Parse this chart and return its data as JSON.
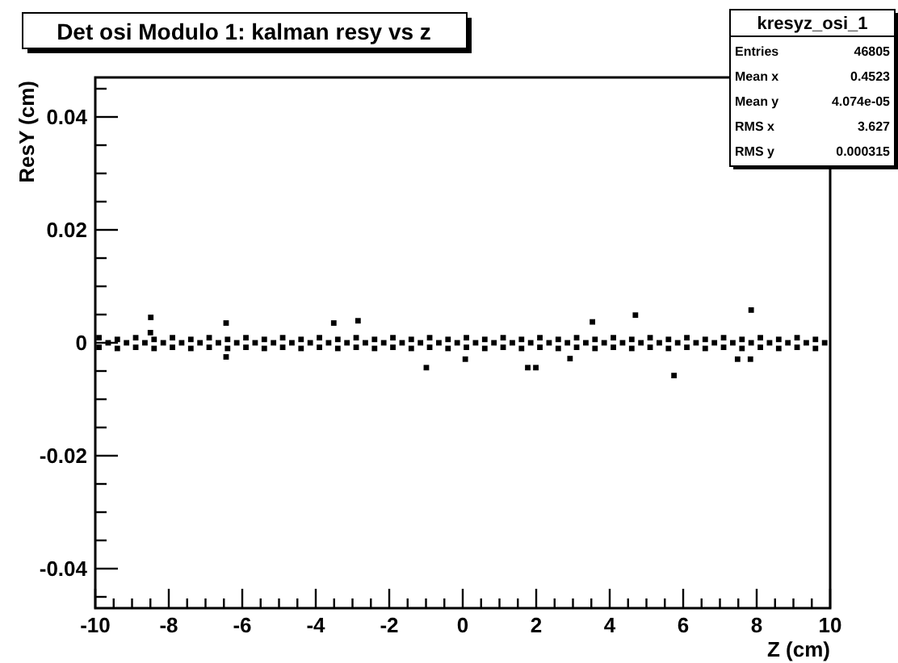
{
  "chart_data": {
    "type": "scatter",
    "title": "Det osi Modulo 1: kalman resy vs z",
    "xlabel": "Z (cm)",
    "ylabel": "ResY (cm)",
    "xlim": [
      -10,
      10
    ],
    "ylim": [
      -0.047,
      0.047
    ],
    "xticks": [
      -10,
      {
        "value": -9.5,
        "label": null
      },
      {
        "value": -9,
        "label": null
      },
      {
        "value": -8.5,
        "label": null
      },
      -8,
      {
        "value": -7.5,
        "label": null
      },
      {
        "value": -7,
        "label": null
      },
      {
        "value": -6.5,
        "label": null
      },
      -6,
      {
        "value": -5.5,
        "label": null
      },
      {
        "value": -5,
        "label": null
      },
      {
        "value": -4.5,
        "label": null
      },
      -4,
      {
        "value": -3.5,
        "label": null
      },
      {
        "value": -3,
        "label": null
      },
      {
        "value": -2.5,
        "label": null
      },
      -2,
      {
        "value": -1.5,
        "label": null
      },
      {
        "value": -1,
        "label": null
      },
      {
        "value": -0.5,
        "label": null
      },
      0,
      {
        "value": 0.5,
        "label": null
      },
      {
        "value": 1,
        "label": null
      },
      {
        "value": 1.5,
        "label": null
      },
      2,
      {
        "value": 2.5,
        "label": null
      },
      {
        "value": 3,
        "label": null
      },
      {
        "value": 3.5,
        "label": null
      },
      4,
      {
        "value": 4.5,
        "label": null
      },
      {
        "value": 5,
        "label": null
      },
      {
        "value": 5.5,
        "label": null
      },
      6,
      {
        "value": 6.5,
        "label": null
      },
      {
        "value": 7,
        "label": null
      },
      {
        "value": 7.5,
        "label": null
      },
      8,
      {
        "value": 8.5,
        "label": null
      },
      {
        "value": 9,
        "label": null
      },
      {
        "value": 9.5,
        "label": null
      },
      10
    ],
    "yticks": [
      {
        "value": -0.045,
        "label": null
      },
      -0.04,
      {
        "value": -0.035,
        "label": null
      },
      {
        "value": -0.03,
        "label": null
      },
      {
        "value": -0.025,
        "label": null
      },
      -0.02,
      {
        "value": -0.015,
        "label": null
      },
      {
        "value": -0.01,
        "label": null
      },
      {
        "value": -0.005,
        "label": null
      },
      0,
      {
        "value": 0.005,
        "label": null
      },
      {
        "value": 0.01,
        "label": null
      },
      {
        "value": 0.015,
        "label": null
      },
      0.02,
      {
        "value": 0.025,
        "label": null
      },
      {
        "value": 0.03,
        "label": null
      },
      {
        "value": 0.035,
        "label": null
      },
      0.04,
      {
        "value": 0.045,
        "label": null
      }
    ],
    "grid": false,
    "marker": "square",
    "series": [
      {
        "color": "#000000",
        "x": [
          -9.9,
          -9.4,
          -8.9,
          -8.4,
          -7.9,
          -7.4,
          -6.9,
          -6.4,
          -5.9,
          -5.4,
          -4.9,
          -4.4,
          -3.9,
          -3.4,
          -2.9,
          -2.4,
          -1.9,
          -1.4,
          -0.9,
          -0.4,
          0.1,
          0.6,
          1.1,
          1.6,
          2.1,
          2.6,
          3.1,
          3.6,
          4.1,
          4.6,
          5.1,
          5.6,
          6.1,
          6.6,
          7.1,
          7.6,
          8.1,
          8.6,
          9.1,
          9.6,
          -9.65,
          -9.15,
          -8.65,
          -8.15,
          -7.65,
          -7.15,
          -6.65,
          -6.15,
          -5.65,
          -5.15,
          -4.65,
          -4.15,
          -3.65,
          -3.15,
          -2.65,
          -2.15,
          -1.65,
          -1.15,
          -0.65,
          -0.15,
          0.35,
          0.85,
          1.35,
          1.85,
          2.35,
          2.85,
          3.35,
          3.85,
          4.35,
          4.85,
          5.35,
          5.85,
          6.35,
          6.85,
          7.35,
          7.85,
          8.35,
          8.85,
          9.35,
          9.85,
          -9.9,
          -9.4,
          -8.9,
          -8.4,
          -7.9,
          -7.4,
          -6.9,
          -6.4,
          -5.9,
          -5.4,
          -4.9,
          -4.4,
          -3.9,
          -3.4,
          -2.9,
          -2.4,
          -1.9,
          -1.4,
          -0.9,
          -0.4,
          0.1,
          0.6,
          1.1,
          1.6,
          2.1,
          2.6,
          3.1,
          3.6,
          4.1,
          4.6,
          5.1,
          5.6,
          6.1,
          6.6,
          7.1,
          7.6,
          8.1,
          8.6,
          9.1,
          9.6,
          -8.49,
          -2.85,
          4.7,
          7.85,
          -0.99,
          1.77,
          1.99,
          5.75,
          -6.44,
          2.92,
          7.48,
          7.83,
          0.07,
          3.53,
          -6.44,
          -3.51,
          -8.5
        ],
        "values": [
          0.0009,
          0.0006,
          0.0009,
          0.0006,
          0.0009,
          0.0006,
          0.0009,
          0.0006,
          0.0009,
          0.0006,
          0.0009,
          0.0006,
          0.0009,
          0.0006,
          0.0009,
          0.0006,
          0.0009,
          0.0006,
          0.0009,
          0.0006,
          0.0009,
          0.0006,
          0.0009,
          0.0006,
          0.0009,
          0.0006,
          0.0009,
          0.0006,
          0.0009,
          0.0006,
          0.0009,
          0.0006,
          0.0009,
          0.0006,
          0.0009,
          0.0006,
          0.0009,
          0.0006,
          0.0009,
          0.0006,
          0,
          0,
          0,
          0,
          0,
          0,
          0,
          0,
          0,
          0,
          0,
          0,
          0,
          0,
          0,
          0,
          0,
          0,
          0,
          0,
          0,
          0,
          0,
          0,
          0,
          0,
          0,
          0,
          0,
          0,
          0,
          0,
          0,
          0,
          0,
          0,
          0,
          0,
          0,
          0,
          -0.0008,
          -0.001,
          -0.0008,
          -0.001,
          -0.0008,
          -0.001,
          -0.0008,
          -0.001,
          -0.0008,
          -0.001,
          -0.0008,
          -0.001,
          -0.0008,
          -0.001,
          -0.0008,
          -0.001,
          -0.0008,
          -0.001,
          -0.0008,
          -0.001,
          -0.0008,
          -0.001,
          -0.0008,
          -0.001,
          -0.0008,
          -0.001,
          -0.0008,
          -0.001,
          -0.0008,
          -0.001,
          -0.0008,
          -0.001,
          -0.0008,
          -0.001,
          -0.0008,
          -0.001,
          -0.0008,
          -0.001,
          -0.0008,
          -0.001,
          0.0045,
          0.0039,
          0.0049,
          0.0058,
          -0.0044,
          -0.0044,
          -0.0044,
          -0.0058,
          -0.0025,
          -0.0028,
          -0.0029,
          -0.0029,
          -0.0029,
          0.0037,
          0.0035,
          0.0035,
          0.0018
        ]
      }
    ],
    "annotations": [
      "kresyz_osi_1",
      "Entries",
      "46805",
      "Mean x",
      "0.4523",
      "Mean y",
      "4.074e-05",
      "RMS x",
      "3.627",
      "RMS y",
      "0.000315"
    ]
  }
}
